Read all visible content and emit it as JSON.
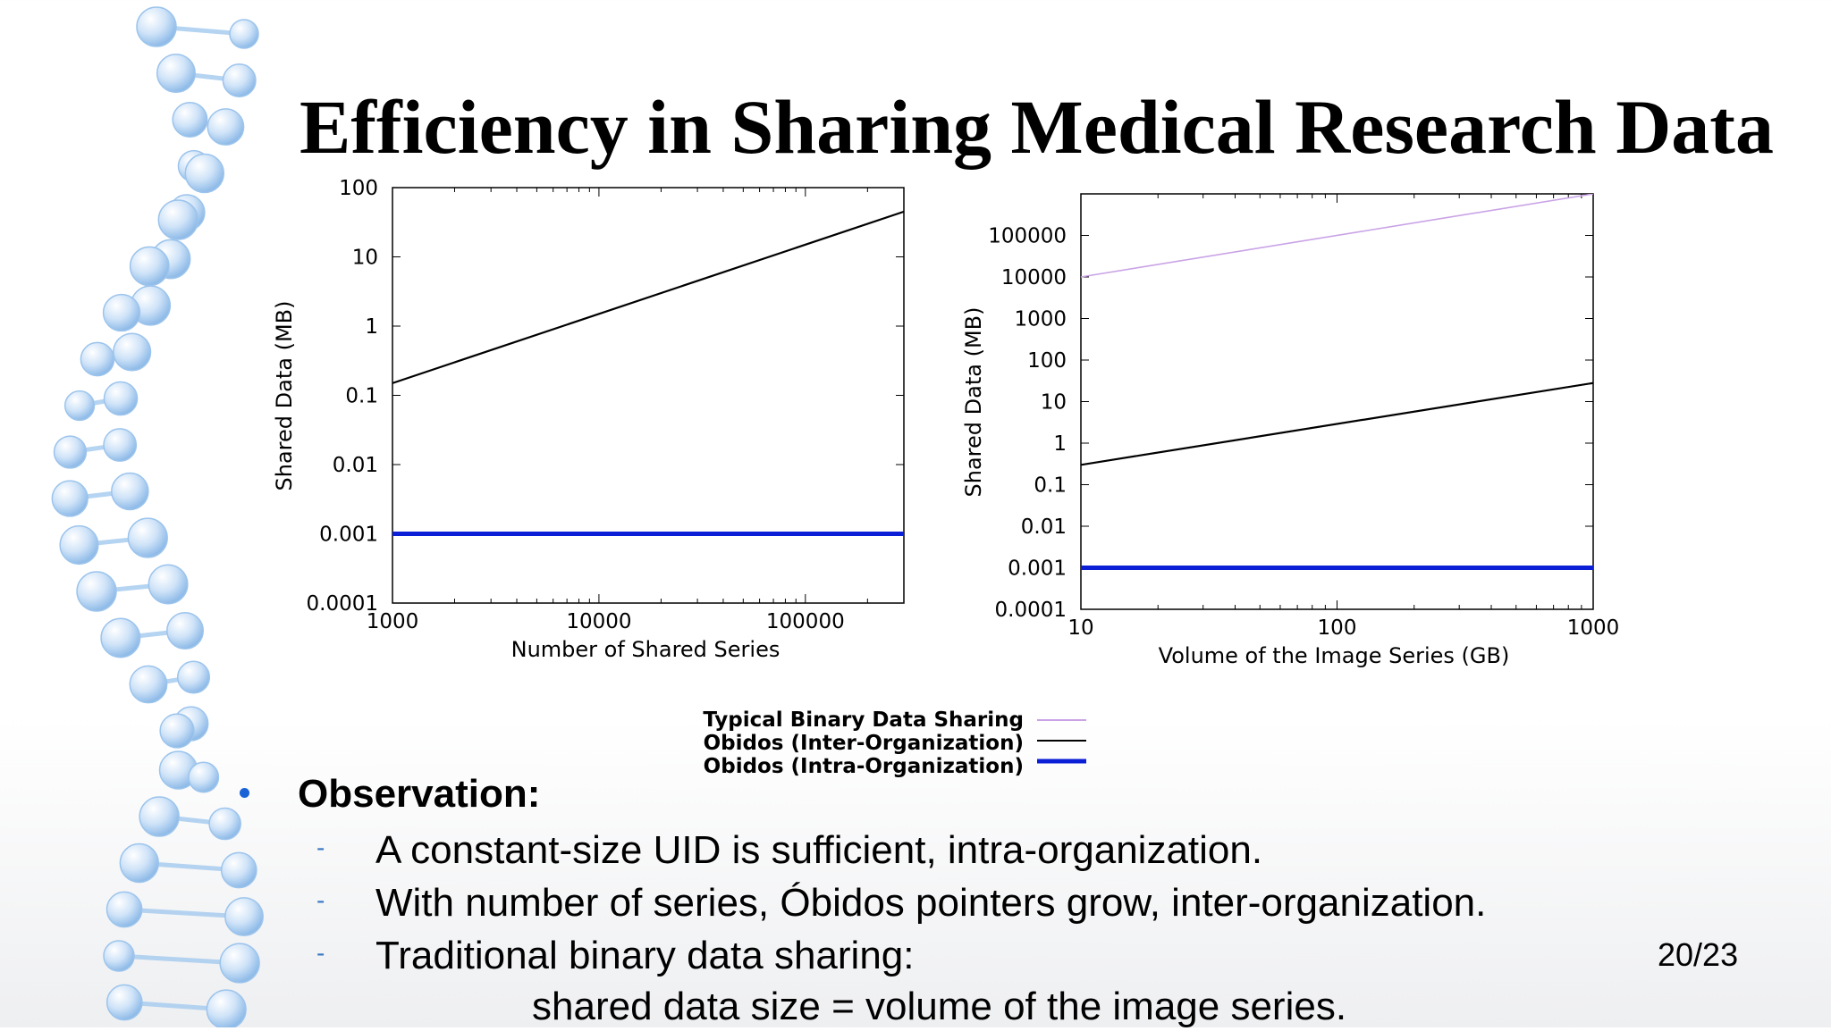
{
  "slide": {
    "title": "Efficiency in Sharing Medical Research Data",
    "observation_heading": "Observation:",
    "bullets": [
      "A constant-size UID is sufficient, intra-organization.",
      "With number of series, Óbidos pointers grow, inter-organization.",
      "Traditional binary data sharing:"
    ],
    "formula": "shared data size = volume of the image series.",
    "page_number": "20/23",
    "colors": {
      "bullet": "#1a62d6",
      "dash": "#3a78c4",
      "dna": "#a9cdf0"
    }
  },
  "legend": {
    "placement": "bottom-center",
    "entries": [
      {
        "label": "Typical Binary Data Sharing",
        "color": "#c9a3e6"
      },
      {
        "label": "Obidos (Inter-Organization)",
        "color": "#000000"
      },
      {
        "label": "Obidos (Intra-Organization)",
        "color": "#0b1fd6"
      }
    ]
  },
  "chart_data": [
    {
      "type": "line",
      "xlabel": "Number of Shared Series",
      "ylabel": "Shared Data (MB)",
      "xscale": "log",
      "yscale": "log",
      "xlim": [
        1000,
        300000
      ],
      "ylim": [
        0.0001,
        100
      ],
      "xticks": [
        1000,
        10000,
        100000
      ],
      "xtick_labels": [
        "1000",
        "10000",
        "100000"
      ],
      "yticks": [
        0.0001,
        0.001,
        0.01,
        0.1,
        1,
        10,
        100
      ],
      "ytick_labels": [
        "0.0001",
        "0.001",
        "0.01",
        "0.1",
        "1",
        "10",
        "100"
      ],
      "series": [
        {
          "name": "Obidos (Inter-Organization)",
          "color": "#000000",
          "x": [
            1000,
            300000
          ],
          "y": [
            0.15,
            45
          ]
        },
        {
          "name": "Obidos (Intra-Organization)",
          "color": "#0b1fd6",
          "x": [
            1000,
            300000
          ],
          "y": [
            0.001,
            0.001
          ]
        }
      ]
    },
    {
      "type": "line",
      "xlabel": "Volume of the Image Series (GB)",
      "ylabel": "Shared Data (MB)",
      "xscale": "log",
      "yscale": "log",
      "xlim": [
        10,
        1000
      ],
      "ylim": [
        0.0001,
        1000000
      ],
      "xticks": [
        10,
        100,
        1000
      ],
      "xtick_labels": [
        "10",
        "100",
        "1000"
      ],
      "yticks": [
        0.0001,
        0.001,
        0.01,
        0.1,
        1,
        10,
        100,
        1000,
        10000,
        100000
      ],
      "ytick_labels": [
        "0.0001",
        "0.001",
        "0.01",
        "0.1",
        "1",
        "10",
        "100",
        "1000",
        "10000",
        "100000"
      ],
      "series": [
        {
          "name": "Typical Binary Data Sharing",
          "color": "#c9a3e6",
          "x": [
            10,
            1000
          ],
          "y": [
            10000,
            1000000
          ]
        },
        {
          "name": "Obidos (Inter-Organization)",
          "color": "#000000",
          "x": [
            10,
            1000
          ],
          "y": [
            0.3,
            28
          ]
        },
        {
          "name": "Obidos (Intra-Organization)",
          "color": "#0b1fd6",
          "x": [
            10,
            1000
          ],
          "y": [
            0.001,
            0.001
          ]
        }
      ]
    }
  ]
}
